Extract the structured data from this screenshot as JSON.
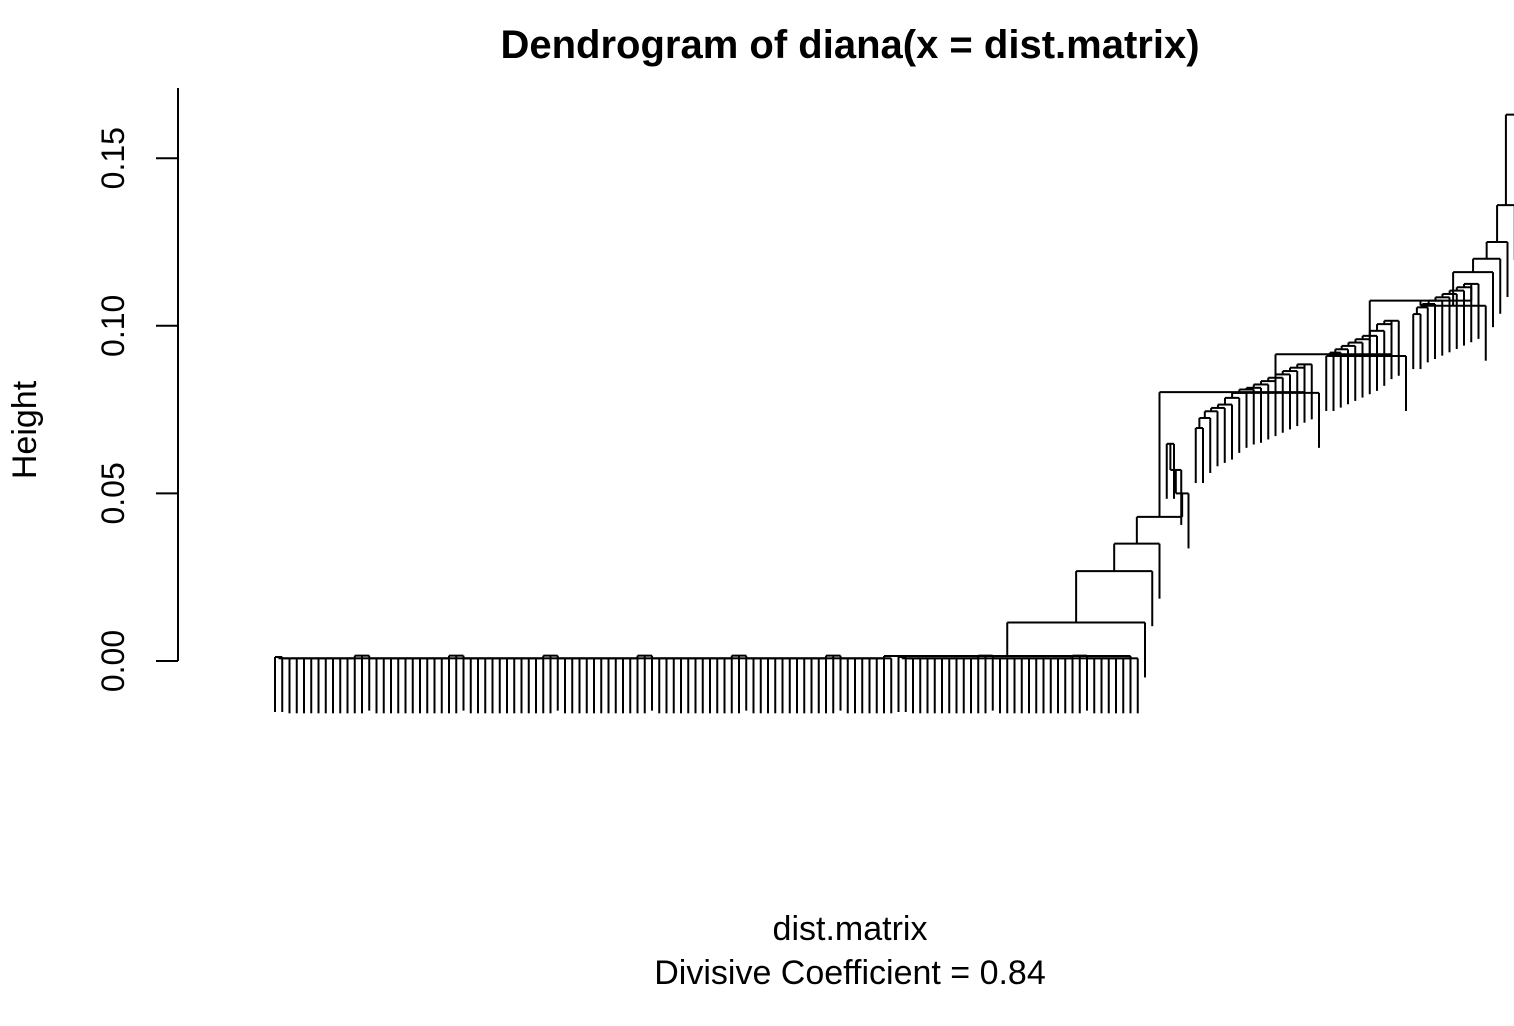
{
  "chart_data": {
    "type": "dendrogram",
    "title": "Dendrogram of  diana(x = dist.matrix)",
    "xlabel": "dist.matrix",
    "sub": "Divisive Coefficient =  0.84",
    "ylabel": "Height",
    "ylim": [
      0,
      0.165
    ],
    "y_ticks": [
      0.0,
      0.05,
      0.1,
      0.15
    ],
    "y_tick_labels": [
      "0.00",
      "0.05",
      "0.10",
      "0.15"
    ],
    "divisive_coefficient": 0.84,
    "merges": [
      {
        "height": 0.163,
        "note": "root split (rightmost)"
      },
      {
        "height": 0.136
      },
      {
        "height": 0.125
      },
      {
        "height": 0.12
      },
      {
        "height": 0.116
      },
      {
        "height": 0.112
      },
      {
        "height": 0.108
      },
      {
        "height": 0.106,
        "note": "left branch"
      },
      {
        "height": 0.091,
        "note": "left branch"
      },
      {
        "height": 0.08,
        "note": "left branch"
      },
      {
        "height": 0.057
      },
      {
        "height": 0.05
      },
      {
        "height": 0.043
      },
      {
        "height": 0.035
      },
      {
        "height": 0.027
      },
      {
        "height": 0.012
      },
      {
        "height": 0.002,
        "note": "large near-zero cluster"
      }
    ]
  }
}
